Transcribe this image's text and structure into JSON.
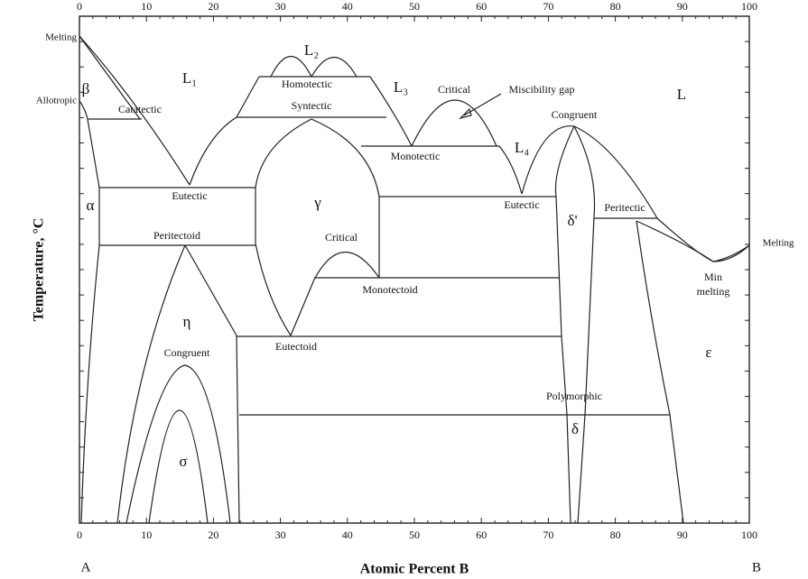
{
  "axis": {
    "x_label": "Atomic Percent B",
    "y_label": "Temperature, °C",
    "left_end": "A",
    "right_end": "B",
    "top_ticks": [
      0,
      10,
      20,
      30,
      40,
      50,
      60,
      70,
      80,
      90,
      100
    ],
    "bottom_ticks": [
      0,
      10,
      20,
      30,
      40,
      50,
      60,
      70,
      80,
      90,
      100
    ]
  },
  "labels": {
    "melting_left": "Melting",
    "allotropic": "Allotropic",
    "beta": "β",
    "catatectic": "Catatectic",
    "l1": "L₁",
    "l2": "L₂",
    "homotectic": "Homotectic",
    "syntectic": "Syntectic",
    "l3": "L₃",
    "critical_top": "Critical",
    "miscibility_gap": "Miscibility gap",
    "congruent_top": "Congruent",
    "l": "L",
    "l4": "L₄",
    "monotectic": "Monotectic",
    "eutectic_left": "Eutectic",
    "alpha": "α",
    "gamma": "γ",
    "eutectic_right": "Eutectic",
    "delta_prime": "δ'",
    "peritectic": "Peritectic",
    "peritectoid": "Peritectoid",
    "critical_mid": "Critical",
    "melting_right": "Melting",
    "min_melting": [
      "Min",
      "melting"
    ],
    "monotectoid": "Monotectoid",
    "eta": "η",
    "congruent_low": "Congruent",
    "eutectoid": "Eutectoid",
    "epsilon": "ε",
    "polymorphic": "Polymorphic",
    "delta": "δ",
    "sigma": "σ"
  }
}
